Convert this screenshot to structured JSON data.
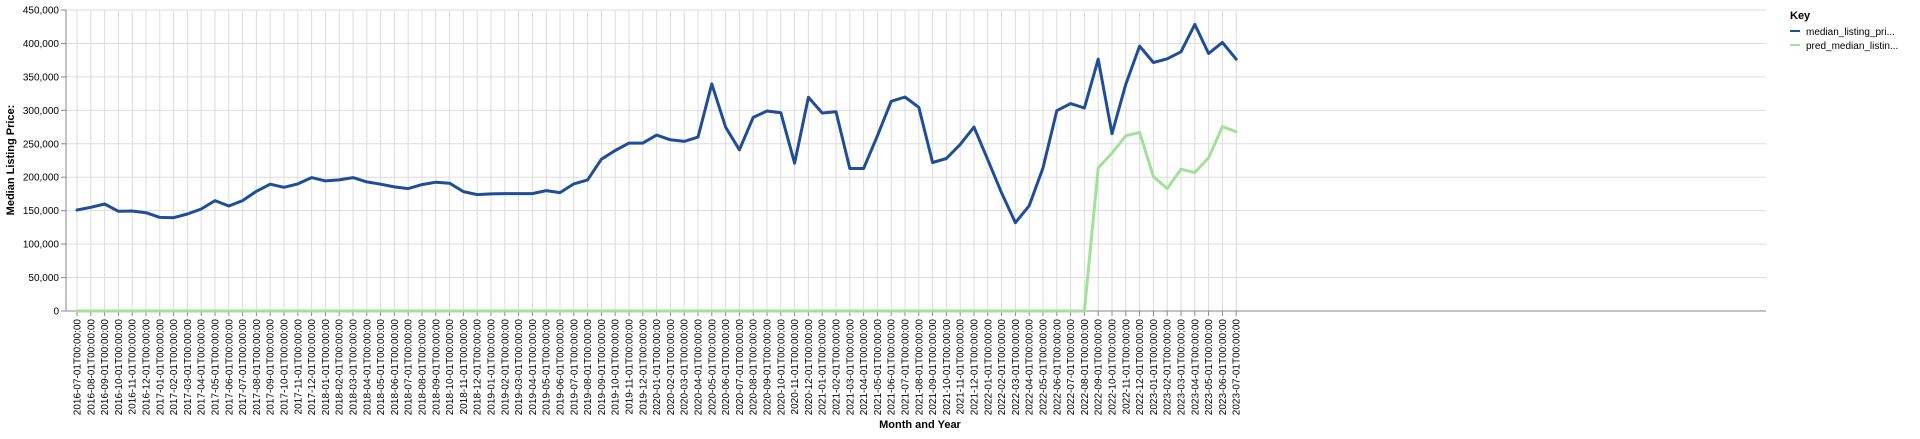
{
  "chart_data": {
    "type": "line",
    "xlabel": "Month and Year",
    "ylabel": "Median Listing Price:",
    "ylim": [
      0,
      450000
    ],
    "y_ticks": [
      0,
      50000,
      100000,
      150000,
      200000,
      250000,
      300000,
      350000,
      400000,
      450000
    ],
    "y_tick_labels": [
      "0",
      "50,000",
      "100,000",
      "150,000",
      "200,000",
      "250,000",
      "300,000",
      "350,000",
      "400,000",
      "450,000"
    ],
    "grid": true,
    "legend": {
      "title": "Key",
      "placement": "right",
      "entries": [
        "median_listing_pri...",
        "pred_median_listin..."
      ]
    },
    "x": [
      "2016-07-01T00:00:00",
      "2016-08-01T00:00:00",
      "2016-09-01T00:00:00",
      "2016-10-01T00:00:00",
      "2016-11-01T00:00:00",
      "2016-12-01T00:00:00",
      "2017-01-01T00:00:00",
      "2017-02-01T00:00:00",
      "2017-03-01T00:00:00",
      "2017-04-01T00:00:00",
      "2017-05-01T00:00:00",
      "2017-06-01T00:00:00",
      "2017-07-01T00:00:00",
      "2017-08-01T00:00:00",
      "2017-09-01T00:00:00",
      "2017-10-01T00:00:00",
      "2017-11-01T00:00:00",
      "2017-12-01T00:00:00",
      "2018-01-01T00:00:00",
      "2018-02-01T00:00:00",
      "2018-03-01T00:00:00",
      "2018-04-01T00:00:00",
      "2018-05-01T00:00:00",
      "2018-06-01T00:00:00",
      "2018-07-01T00:00:00",
      "2018-08-01T00:00:00",
      "2018-09-01T00:00:00",
      "2018-10-01T00:00:00",
      "2018-11-01T00:00:00",
      "2018-12-01T00:00:00",
      "2019-01-01T00:00:00",
      "2019-02-01T00:00:00",
      "2019-03-01T00:00:00",
      "2019-04-01T00:00:00",
      "2019-05-01T00:00:00",
      "2019-06-01T00:00:00",
      "2019-07-01T00:00:00",
      "2019-08-01T00:00:00",
      "2019-09-01T00:00:00",
      "2019-10-01T00:00:00",
      "2019-11-01T00:00:00",
      "2019-12-01T00:00:00",
      "2020-01-01T00:00:00",
      "2020-02-01T00:00:00",
      "2020-03-01T00:00:00",
      "2020-04-01T00:00:00",
      "2020-05-01T00:00:00",
      "2020-06-01T00:00:00",
      "2020-07-01T00:00:00",
      "2020-08-01T00:00:00",
      "2020-09-01T00:00:00",
      "2020-10-01T00:00:00",
      "2020-11-01T00:00:00",
      "2020-12-01T00:00:00",
      "2021-01-01T00:00:00",
      "2021-02-01T00:00:00",
      "2021-03-01T00:00:00",
      "2021-04-01T00:00:00",
      "2021-05-01T00:00:00",
      "2021-06-01T00:00:00",
      "2021-07-01T00:00:00",
      "2021-08-01T00:00:00",
      "2021-09-01T00:00:00",
      "2021-10-01T00:00:00",
      "2021-11-01T00:00:00",
      "2021-12-01T00:00:00",
      "2022-01-01T00:00:00",
      "2022-02-01T00:00:00",
      "2022-03-01T00:00:00",
      "2022-04-01T00:00:00",
      "2022-05-01T00:00:00",
      "2022-06-01T00:00:00",
      "2022-07-01T00:00:00",
      "2022-08-01T00:00:00",
      "2022-09-01T00:00:00",
      "2022-10-01T00:00:00",
      "2022-11-01T00:00:00",
      "2022-12-01T00:00:00",
      "2023-01-01T00:00:00",
      "2023-02-01T00:00:00",
      "2023-03-01T00:00:00",
      "2023-04-01T00:00:00",
      "2023-05-01T00:00:00",
      "2023-06-01T00:00:00",
      "2023-07-01T00:00:00"
    ],
    "series": [
      {
        "name": "median_listing_pri...",
        "color": "#1f4e96",
        "values": [
          151000,
          155000,
          160000,
          149000,
          149500,
          147000,
          140000,
          139500,
          145000,
          152500,
          165000,
          157000,
          165000,
          179000,
          189500,
          185000,
          190000,
          199500,
          194500,
          196000,
          199500,
          193000,
          189500,
          185500,
          183000,
          189000,
          192500,
          191000,
          178500,
          174000,
          175000,
          175500,
          175500,
          175500,
          180000,
          177000,
          190000,
          196000,
          227000,
          240000,
          251000,
          251000,
          263000,
          256000,
          253500,
          260000,
          339500,
          275000,
          241000,
          289500,
          299000,
          296500,
          221000,
          319500,
          296000,
          298000,
          213000,
          213000,
          262000,
          313500,
          320000,
          304500,
          222000,
          228000,
          249000,
          275000,
          226000,
          176500,
          132000,
          157500,
          214000,
          299500,
          310000,
          303500,
          376500,
          265000,
          339000,
          396000,
          371500,
          377000,
          387500,
          428500,
          385000,
          401500,
          376500
        ]
      },
      {
        "name": "pred_median_listin...",
        "color": "#a3e09a",
        "values": [
          0,
          0,
          0,
          0,
          0,
          0,
          0,
          0,
          0,
          0,
          0,
          0,
          0,
          0,
          0,
          0,
          0,
          0,
          0,
          0,
          0,
          0,
          0,
          0,
          0,
          0,
          0,
          0,
          0,
          0,
          0,
          0,
          0,
          0,
          0,
          0,
          0,
          0,
          0,
          0,
          0,
          0,
          0,
          0,
          0,
          0,
          0,
          0,
          0,
          0,
          0,
          0,
          0,
          0,
          0,
          0,
          0,
          0,
          0,
          0,
          0,
          0,
          0,
          0,
          0,
          0,
          0,
          0,
          0,
          0,
          0,
          0,
          0,
          0,
          214000,
          236000,
          262000,
          267000,
          201000,
          183000,
          212000,
          207000,
          229000,
          275500,
          268000
        ]
      }
    ]
  }
}
